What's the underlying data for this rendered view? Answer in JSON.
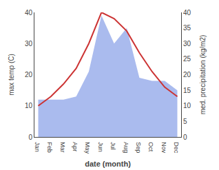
{
  "chart_data": {
    "type": "line",
    "categories": [
      "Jan",
      "Feb",
      "Mar",
      "Apr",
      "May",
      "Jun",
      "Jul",
      "Aug",
      "Sep",
      "Oct",
      "Nov",
      "Dec"
    ],
    "series": [
      {
        "type": "area",
        "color": "#aabbee",
        "axis": "y2",
        "values": [
          12,
          12,
          12,
          13,
          21,
          39,
          30,
          35,
          19,
          18,
          18,
          15
        ]
      },
      {
        "type": "line",
        "color": "#cc3333",
        "values": [
          10,
          13,
          17,
          22,
          30,
          40,
          38,
          34,
          27,
          21,
          16,
          13
        ]
      }
    ],
    "xlabel": "date (month)",
    "ylabel": "max temp (C)",
    "y2label": "med. precipitation (kg/m2)",
    "ylim": [
      0,
      40
    ],
    "yticks": [
      0,
      10,
      20,
      30,
      40
    ],
    "y2lim": [
      0,
      40
    ],
    "y2ticks": [
      0,
      5,
      10,
      15,
      20,
      25,
      30,
      35,
      40
    ],
    "grid": false
  }
}
